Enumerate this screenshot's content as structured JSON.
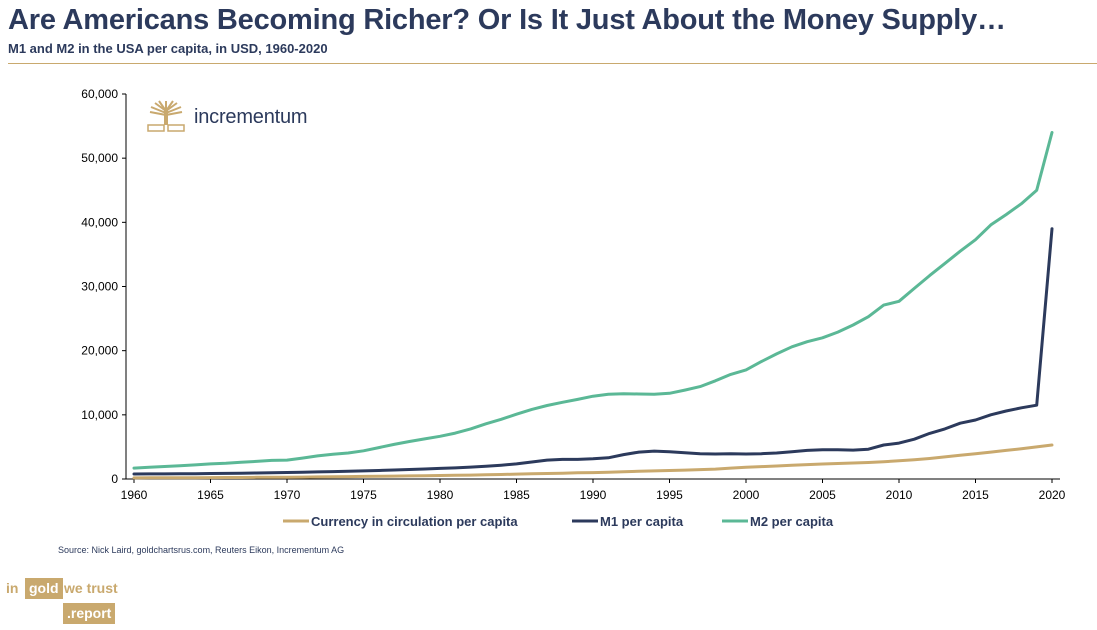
{
  "header": {
    "title": "Are Americans Becoming Richer? Or Is It Just About the Money Supply…",
    "subtitle": "M1 and M2 in the USA per capita, in USD, 1960-2020"
  },
  "brand": {
    "incrementum_text": "incrementum",
    "source_text": "Source: Nick Laird, goldchartsrus.com, Reuters Eikon, Incrementum AG",
    "igwt": {
      "in": "in",
      "gold": "gold",
      "we_trust": "we trust",
      "report": ".report"
    }
  },
  "colors": {
    "title": "#2c3a5c",
    "gold": "#c9a96e",
    "currency_line": "#c9a96e",
    "m1_line": "#2c3a5c",
    "m2_line": "#5bb896",
    "axis": "#000000"
  },
  "chart_data": {
    "type": "line",
    "xlim": [
      1960,
      2020
    ],
    "ylim": [
      0,
      60000
    ],
    "x_ticks": [
      "1960",
      "1965",
      "1970",
      "1975",
      "1980",
      "1985",
      "1990",
      "1995",
      "2000",
      "2005",
      "2010",
      "2015",
      "2020"
    ],
    "y_ticks": [
      "0",
      "10,000",
      "20,000",
      "30,000",
      "40,000",
      "50,000",
      "60,000"
    ],
    "legend_position": "bottom",
    "grid": false,
    "x": [
      1960,
      1961,
      1962,
      1963,
      1964,
      1965,
      1966,
      1967,
      1968,
      1969,
      1970,
      1971,
      1972,
      1973,
      1974,
      1975,
      1976,
      1977,
      1978,
      1979,
      1980,
      1981,
      1982,
      1983,
      1984,
      1985,
      1986,
      1987,
      1988,
      1989,
      1990,
      1991,
      1992,
      1993,
      1994,
      1995,
      1996,
      1997,
      1998,
      1999,
      2000,
      2001,
      2002,
      2003,
      2004,
      2005,
      2006,
      2007,
      2008,
      2009,
      2010,
      2011,
      2012,
      2013,
      2014,
      2015,
      2016,
      2017,
      2018,
      2019,
      2020
    ],
    "series": [
      {
        "name": "Currency in circulation per capita",
        "color": "#c9a96e",
        "values": [
          170,
          180,
          190,
          200,
          210,
          220,
          230,
          240,
          260,
          270,
          280,
          300,
          320,
          340,
          370,
          400,
          420,
          450,
          480,
          510,
          540,
          570,
          610,
          660,
          700,
          760,
          810,
          860,
          910,
          960,
          1000,
          1060,
          1130,
          1200,
          1270,
          1330,
          1390,
          1460,
          1540,
          1700,
          1830,
          1930,
          2030,
          2150,
          2250,
          2330,
          2420,
          2490,
          2570,
          2700,
          2840,
          3000,
          3200,
          3450,
          3700,
          3950,
          4200,
          4450,
          4700,
          5000,
          5300
        ]
      },
      {
        "name": "M1 per capita",
        "color": "#2c3a5c",
        "values": [
          780,
          790,
          800,
          810,
          830,
          850,
          870,
          900,
          940,
          980,
          1010,
          1060,
          1110,
          1160,
          1210,
          1260,
          1320,
          1400,
          1480,
          1560,
          1650,
          1730,
          1860,
          2000,
          2150,
          2350,
          2650,
          2950,
          3050,
          3050,
          3150,
          3300,
          3800,
          4200,
          4350,
          4250,
          4100,
          3950,
          3900,
          3950,
          3900,
          3950,
          4050,
          4250,
          4450,
          4550,
          4550,
          4500,
          4650,
          5300,
          5600,
          6200,
          7100,
          7800,
          8700,
          9200,
          10000,
          10600,
          11100,
          11500,
          39000
        ]
      },
      {
        "name": "M2 per capita",
        "color": "#5bb896",
        "values": [
          1700,
          1820,
          1950,
          2050,
          2200,
          2350,
          2450,
          2600,
          2750,
          2900,
          2950,
          3250,
          3600,
          3850,
          4050,
          4400,
          4900,
          5400,
          5850,
          6250,
          6650,
          7150,
          7800,
          8600,
          9300,
          10100,
          10850,
          11450,
          11950,
          12400,
          12900,
          13200,
          13300,
          13250,
          13200,
          13350,
          13850,
          14400,
          15300,
          16300,
          17000,
          18300,
          19500,
          20600,
          21400,
          22000,
          22900,
          24000,
          25300,
          27100,
          27700,
          29700,
          31700,
          33600,
          35500,
          37300,
          39600,
          41200,
          42900,
          45000,
          54000
        ]
      }
    ]
  }
}
